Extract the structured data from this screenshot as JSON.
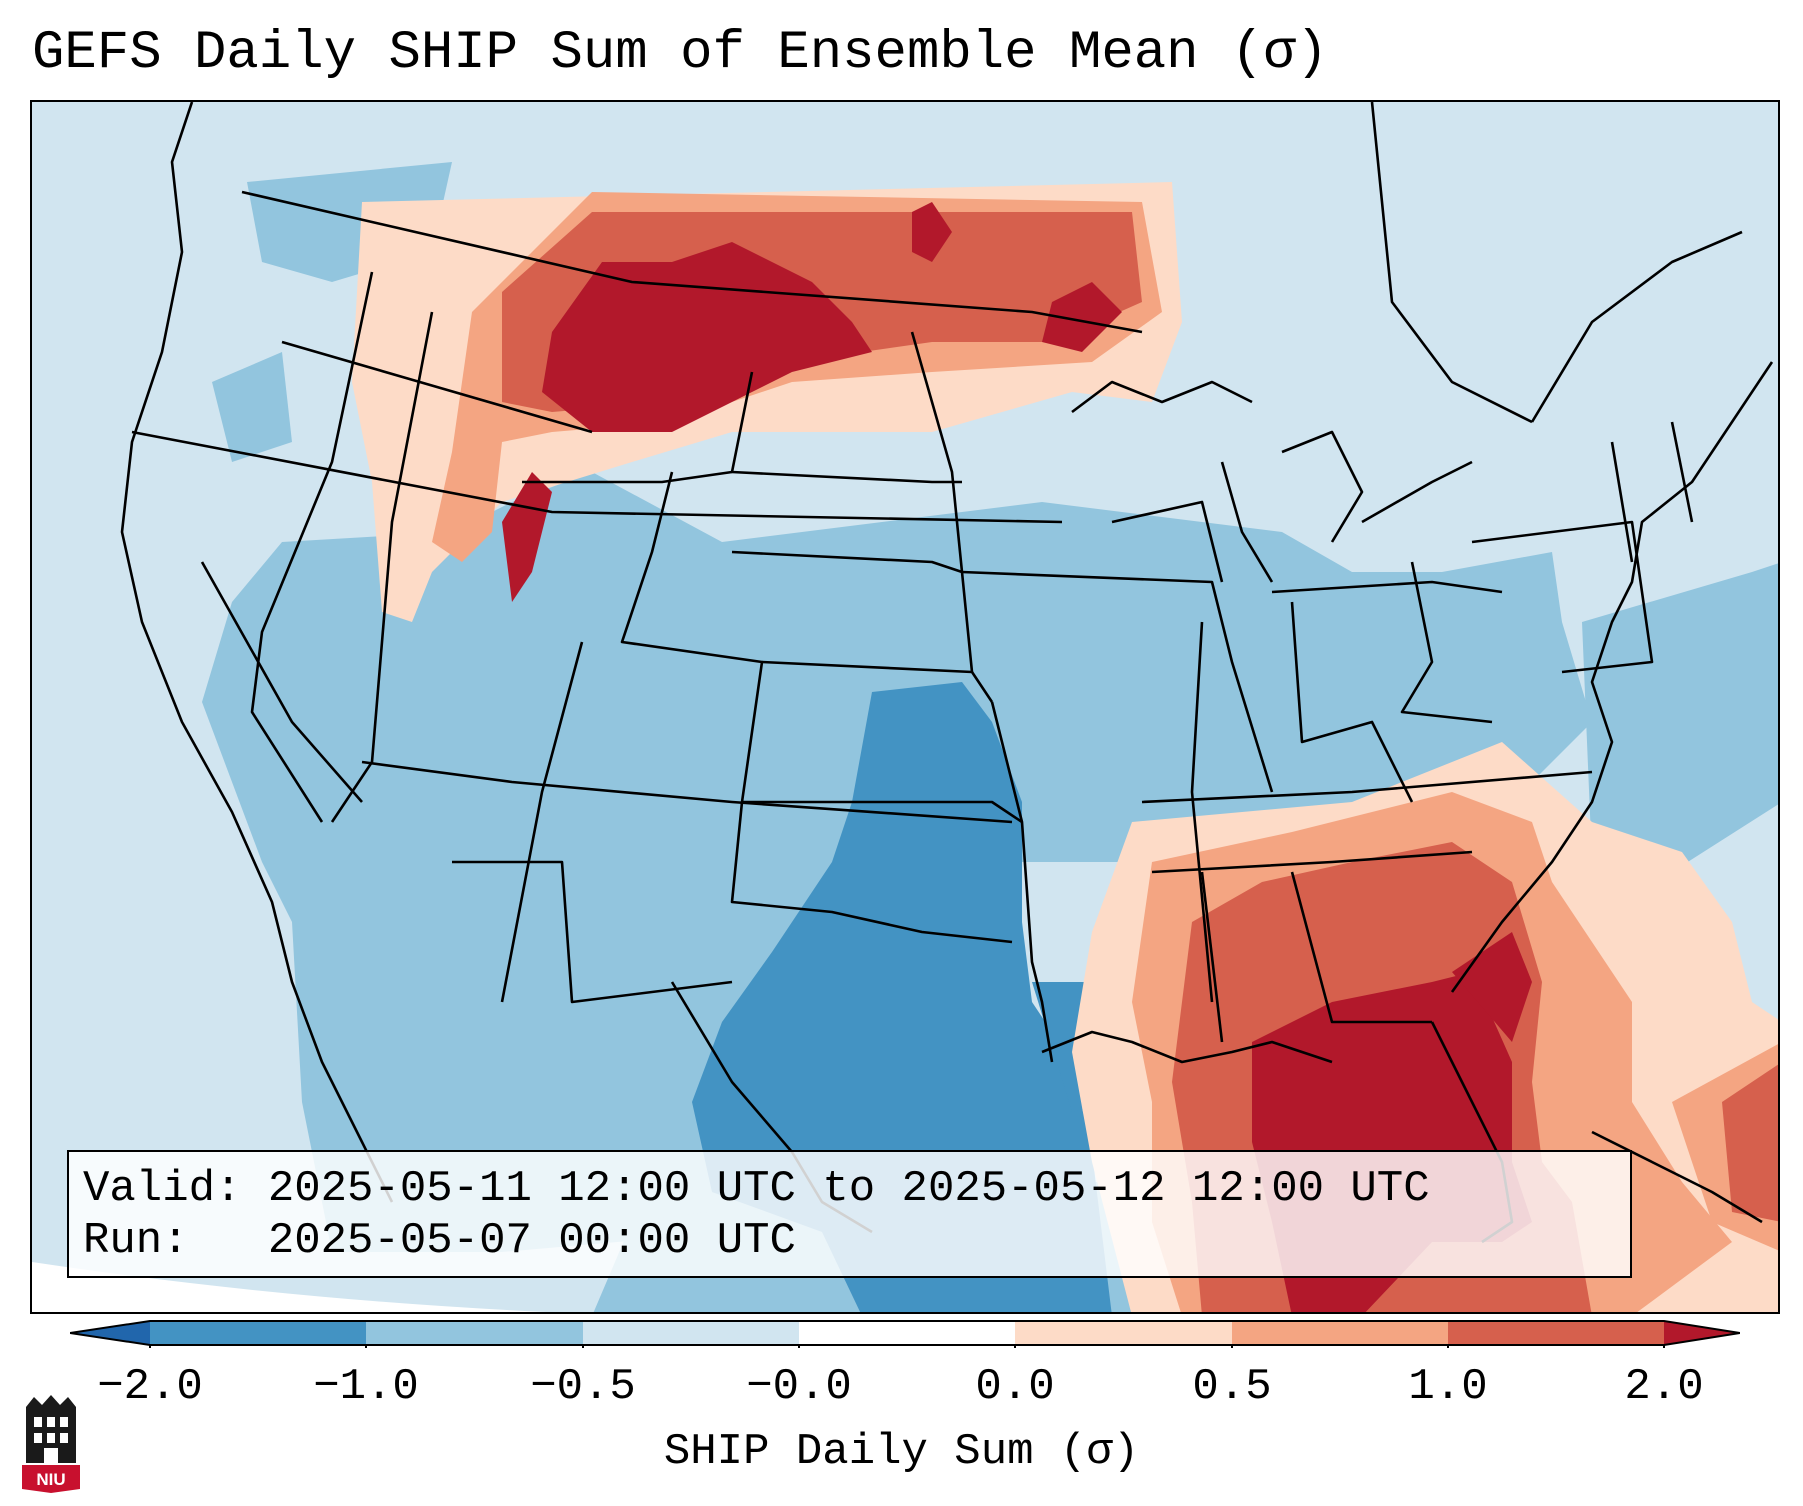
{
  "title": "GEFS Daily SHIP Sum of Ensemble Mean (σ)",
  "valid_line": "Valid: 2025-05-11 12:00 UTC to 2025-05-12 12:00 UTC",
  "run_line": "Run:   2025-05-07 00:00 UTC",
  "colorbar": {
    "label": "SHIP Daily Sum (σ)",
    "ticks": [
      "−2.0",
      "−1.0",
      "−0.5",
      "−0.0",
      "0.0",
      "0.5",
      "1.0",
      "2.0"
    ],
    "bins": [
      {
        "range": "<-2.0",
        "color": "#2166ac"
      },
      {
        "range": "-2.0 to -1.0",
        "color": "#4393c3"
      },
      {
        "range": "-1.0 to -0.5",
        "color": "#92c5de"
      },
      {
        "range": "-0.5 to 0.0",
        "color": "#d1e5f0"
      },
      {
        "range": "0.0 (neutral)",
        "color": "#ffffff"
      },
      {
        "range": "0.0 to 0.5",
        "color": "#fddbc7"
      },
      {
        "range": "0.5 to 1.0",
        "color": "#f4a582"
      },
      {
        "range": "1.0 to 2.0",
        "color": "#d6604d"
      },
      {
        "range": ">2.0",
        "color": "#b2182b"
      }
    ],
    "extend": "both"
  },
  "map": {
    "projection": "Lambert Conformal (CONUS)",
    "background_value": "-0.5 to 0.0",
    "regions": [
      {
        "name": "Northern Rockies / Montana / southern Canada",
        "level": "1.0 to 2.0",
        "peak": ">2.0"
      },
      {
        "name": "Idaho / northern Utah",
        "level": "0.5 to 1.0",
        "peak": ">2.0"
      },
      {
        "name": "Dakotas / Minnesota / Great Lakes north",
        "level": "0.0 to 0.5",
        "peak": "1.0 to 2.0"
      },
      {
        "name": "Central Plains / Midwest",
        "level": "-1.0 to -0.5"
      },
      {
        "name": "Texas / Oklahoma",
        "level": "-2.0 to -1.0"
      },
      {
        "name": "Southeast US / Florida / Gulf",
        "level": "1.0 to 2.0",
        "peak": ">2.0"
      },
      {
        "name": "Atlantic / Caribbean",
        "level": "0.0 to 0.5",
        "peak": "1.0 to 2.0"
      }
    ]
  },
  "logo_text": "NIU"
}
